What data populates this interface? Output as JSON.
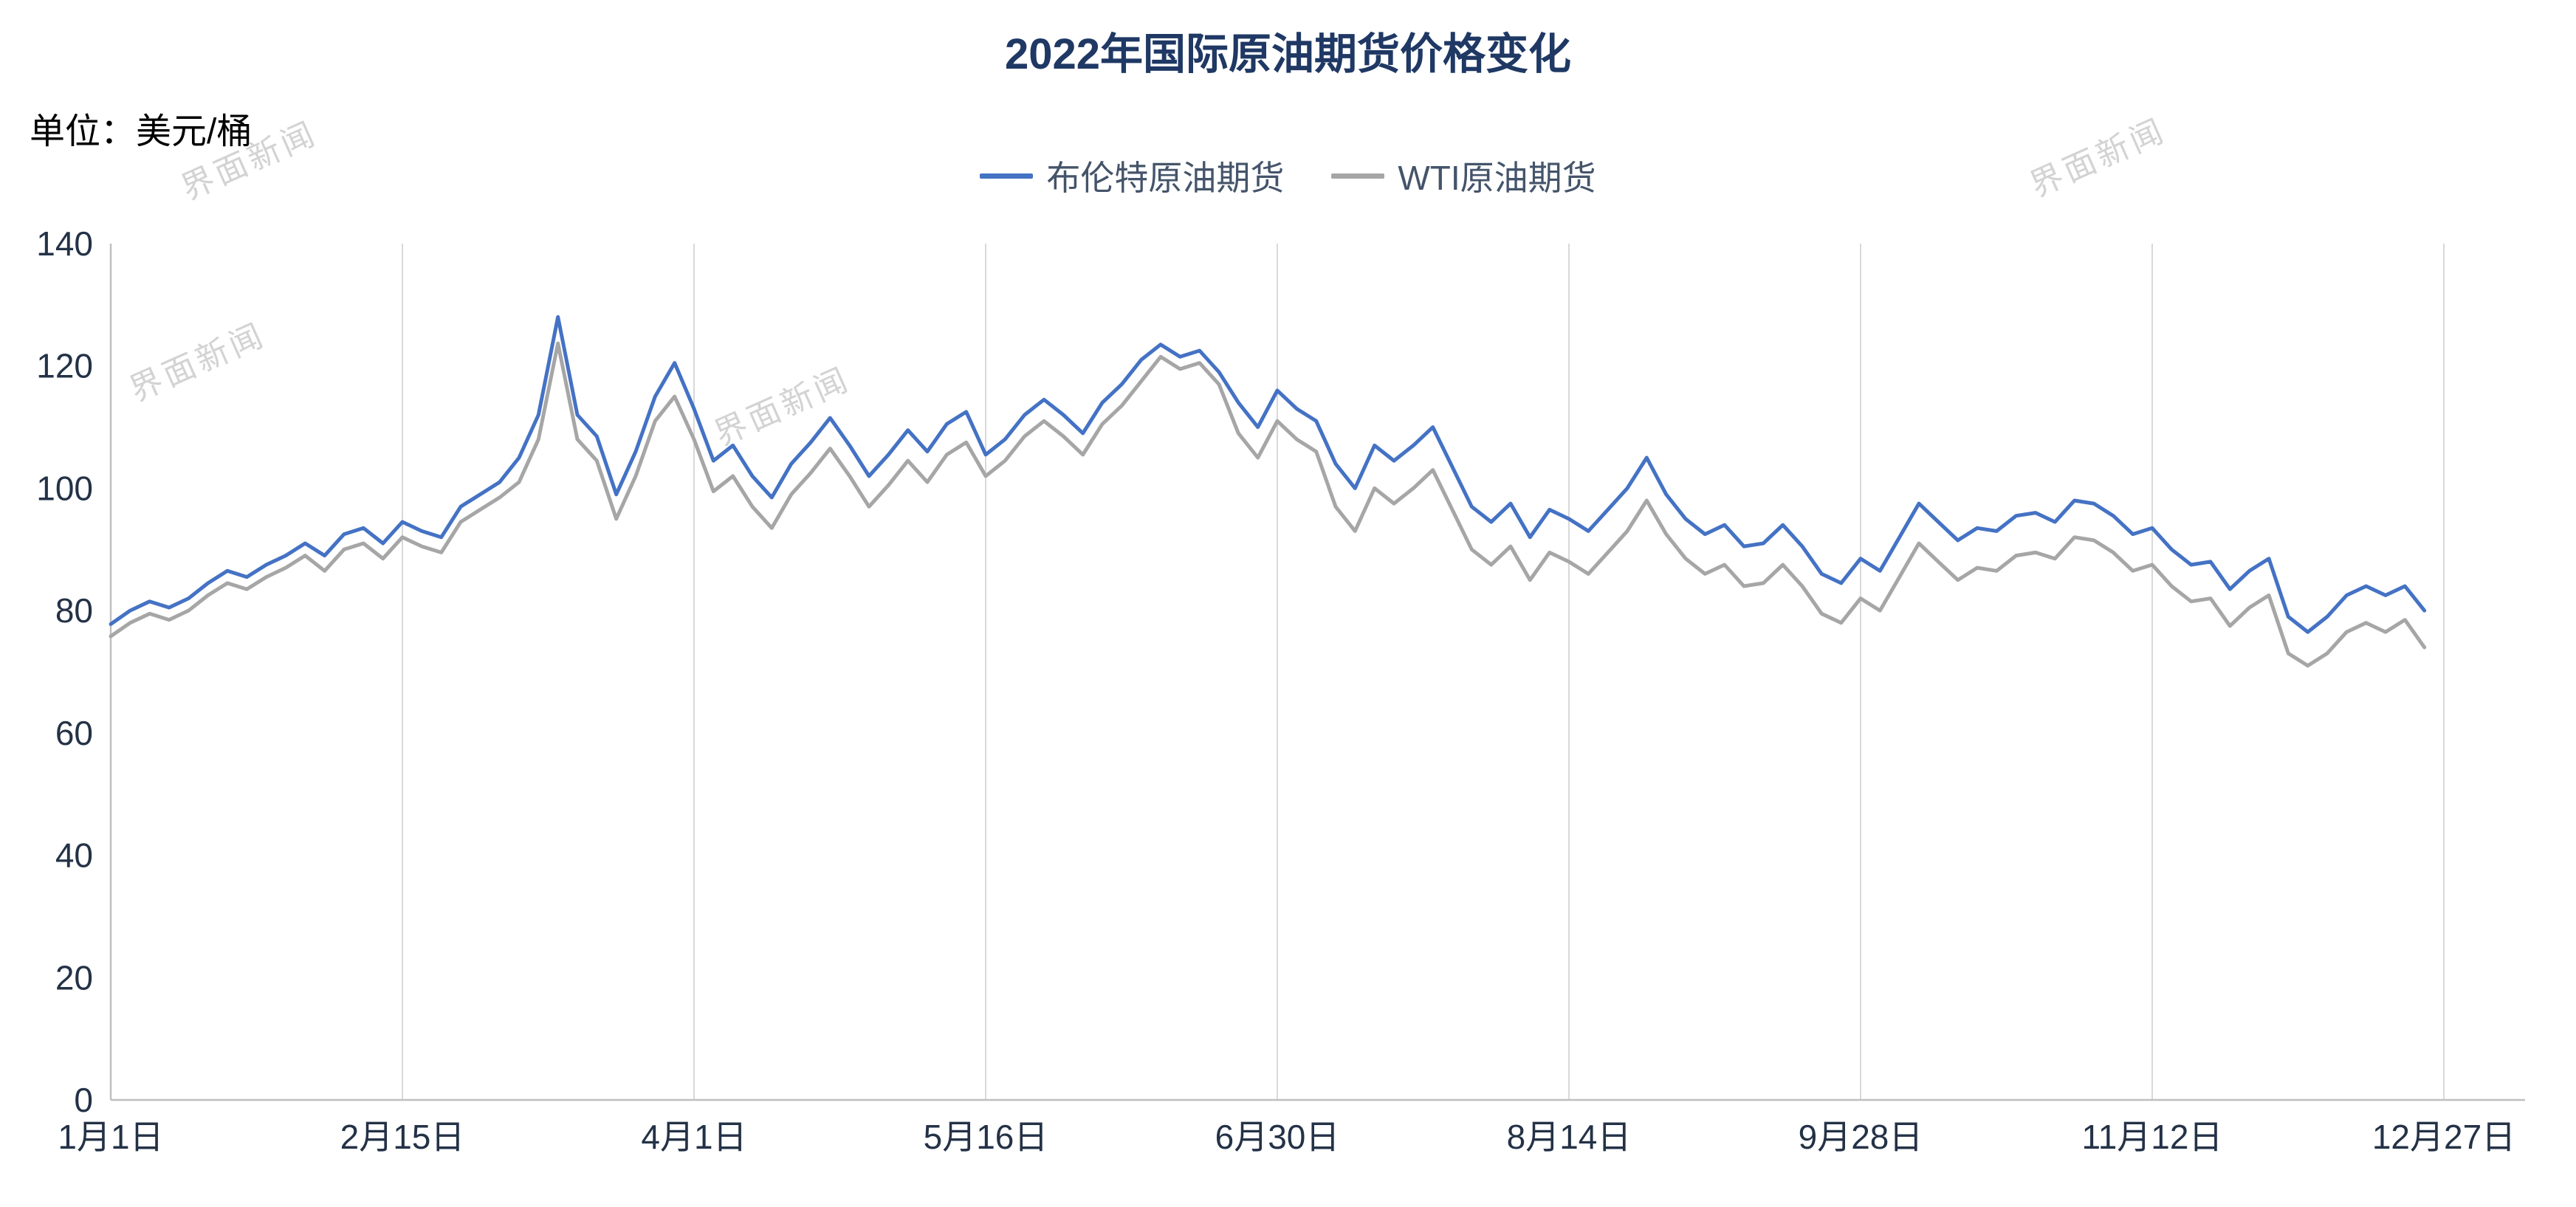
{
  "header": {
    "title": "2022年国际原油期货价格变化",
    "unit_label": "单位：美元/桶"
  },
  "legend": [
    {
      "label": "布伦特原油期货",
      "color": "#4472C4"
    },
    {
      "label": "WTI原油期货",
      "color": "#A6A6A6"
    }
  ],
  "watermark": {
    "text": "界面新闻"
  },
  "colors": {
    "title": "#1F3864",
    "axis_text": "#243247",
    "gridline": "#D9D9D9",
    "axis_line": "#BFBFBF",
    "brent": "#4472C4",
    "wti": "#A6A6A6"
  },
  "chart_data": {
    "type": "line",
    "title": "2022年国际原油期货价格变化",
    "ylabel": "美元/桶",
    "ylim": [
      0,
      140
    ],
    "y_ticks": [
      0,
      20,
      40,
      60,
      80,
      100,
      120,
      140
    ],
    "x_tick_labels": [
      "1月1日",
      "2月15日",
      "4月1日",
      "5月16日",
      "6月30日",
      "8月14日",
      "9月28日",
      "11月12日",
      "12月27日"
    ],
    "x_range_days": [
      0,
      360
    ],
    "grid": "vertical-only",
    "legend_position": "top-center",
    "x_days": [
      0,
      3,
      6,
      9,
      12,
      15,
      18,
      21,
      24,
      27,
      30,
      33,
      36,
      39,
      42,
      45,
      48,
      51,
      54,
      57,
      60,
      63,
      66,
      69,
      72,
      75,
      78,
      81,
      84,
      87,
      90,
      93,
      96,
      99,
      102,
      105,
      108,
      111,
      114,
      117,
      120,
      123,
      126,
      129,
      132,
      135,
      138,
      141,
      144,
      147,
      150,
      153,
      156,
      159,
      162,
      165,
      168,
      171,
      174,
      177,
      180,
      183,
      186,
      189,
      192,
      195,
      198,
      201,
      204,
      207,
      210,
      213,
      216,
      219,
      222,
      225,
      228,
      231,
      234,
      237,
      240,
      243,
      246,
      249,
      252,
      255,
      258,
      261,
      264,
      267,
      270,
      273,
      276,
      279,
      282,
      285,
      288,
      291,
      294,
      297,
      300,
      303,
      306,
      309,
      312,
      315,
      318,
      321,
      324,
      327,
      330,
      333,
      336,
      339,
      342,
      345,
      348,
      351,
      354,
      357
    ],
    "series": [
      {
        "name": "布伦特原油期货",
        "color": "#4472C4",
        "values": [
          77.8,
          80,
          81.5,
          80.5,
          82,
          84.5,
          86.5,
          85.5,
          87.5,
          89,
          91,
          89,
          92.5,
          93.5,
          91,
          94.5,
          93,
          92,
          97,
          99,
          101,
          105,
          112,
          128,
          112,
          108.5,
          99,
          106,
          115,
          120.5,
          113,
          104.5,
          107,
          102,
          98.5,
          104,
          107.5,
          111.5,
          107,
          102,
          105.5,
          109.5,
          106,
          110.5,
          112.5,
          105.5,
          108,
          112,
          114.5,
          112,
          109,
          114,
          117,
          121,
          123.5,
          121.5,
          122.5,
          119,
          114,
          110,
          116,
          113,
          111,
          104,
          100,
          107,
          104.5,
          107,
          110,
          103.5,
          97,
          94.5,
          97.5,
          92,
          96.5,
          95,
          93,
          96.5,
          100,
          105,
          99,
          95,
          92.5,
          94,
          90.5,
          91,
          94,
          90.5,
          86,
          84.5,
          88.5,
          86.5,
          92,
          97.5,
          94.5,
          91.5,
          93.5,
          93,
          95.5,
          96,
          94.5,
          98,
          97.5,
          95.5,
          92.5,
          93.5,
          90,
          87.5,
          88,
          83.5,
          86.5,
          88.5,
          79,
          76.5,
          79,
          82.5,
          84,
          82.5,
          84,
          80
        ]
      },
      {
        "name": "WTI原油期货",
        "color": "#A6A6A6",
        "values": [
          75.8,
          78,
          79.5,
          78.5,
          80,
          82.5,
          84.5,
          83.5,
          85.5,
          87,
          89,
          86.5,
          90,
          91,
          88.5,
          92,
          90.5,
          89.5,
          94.5,
          96.5,
          98.5,
          101,
          108,
          123.7,
          108,
          104.5,
          95,
          102,
          111,
          115,
          108,
          99.5,
          102,
          97,
          93.5,
          99,
          102.5,
          106.5,
          102,
          97,
          100.5,
          104.5,
          101,
          105.5,
          107.5,
          102,
          104.5,
          108.5,
          111,
          108.5,
          105.5,
          110.5,
          113.5,
          117.5,
          121.5,
          119.5,
          120.5,
          117,
          109,
          105,
          111,
          108,
          106,
          97,
          93,
          100,
          97.5,
          100,
          103,
          96.5,
          90,
          87.5,
          90.5,
          85,
          89.5,
          88,
          86,
          89.5,
          93,
          98,
          92.5,
          88.5,
          86,
          87.5,
          84,
          84.5,
          87.5,
          84,
          79.5,
          78,
          82,
          80,
          85.5,
          91,
          88,
          85,
          87,
          86.5,
          89,
          89.5,
          88.5,
          92,
          91.5,
          89.5,
          86.5,
          87.5,
          84,
          81.5,
          82,
          77.5,
          80.5,
          82.5,
          73,
          71,
          73,
          76.5,
          78,
          76.5,
          78.5,
          74
        ]
      }
    ]
  }
}
